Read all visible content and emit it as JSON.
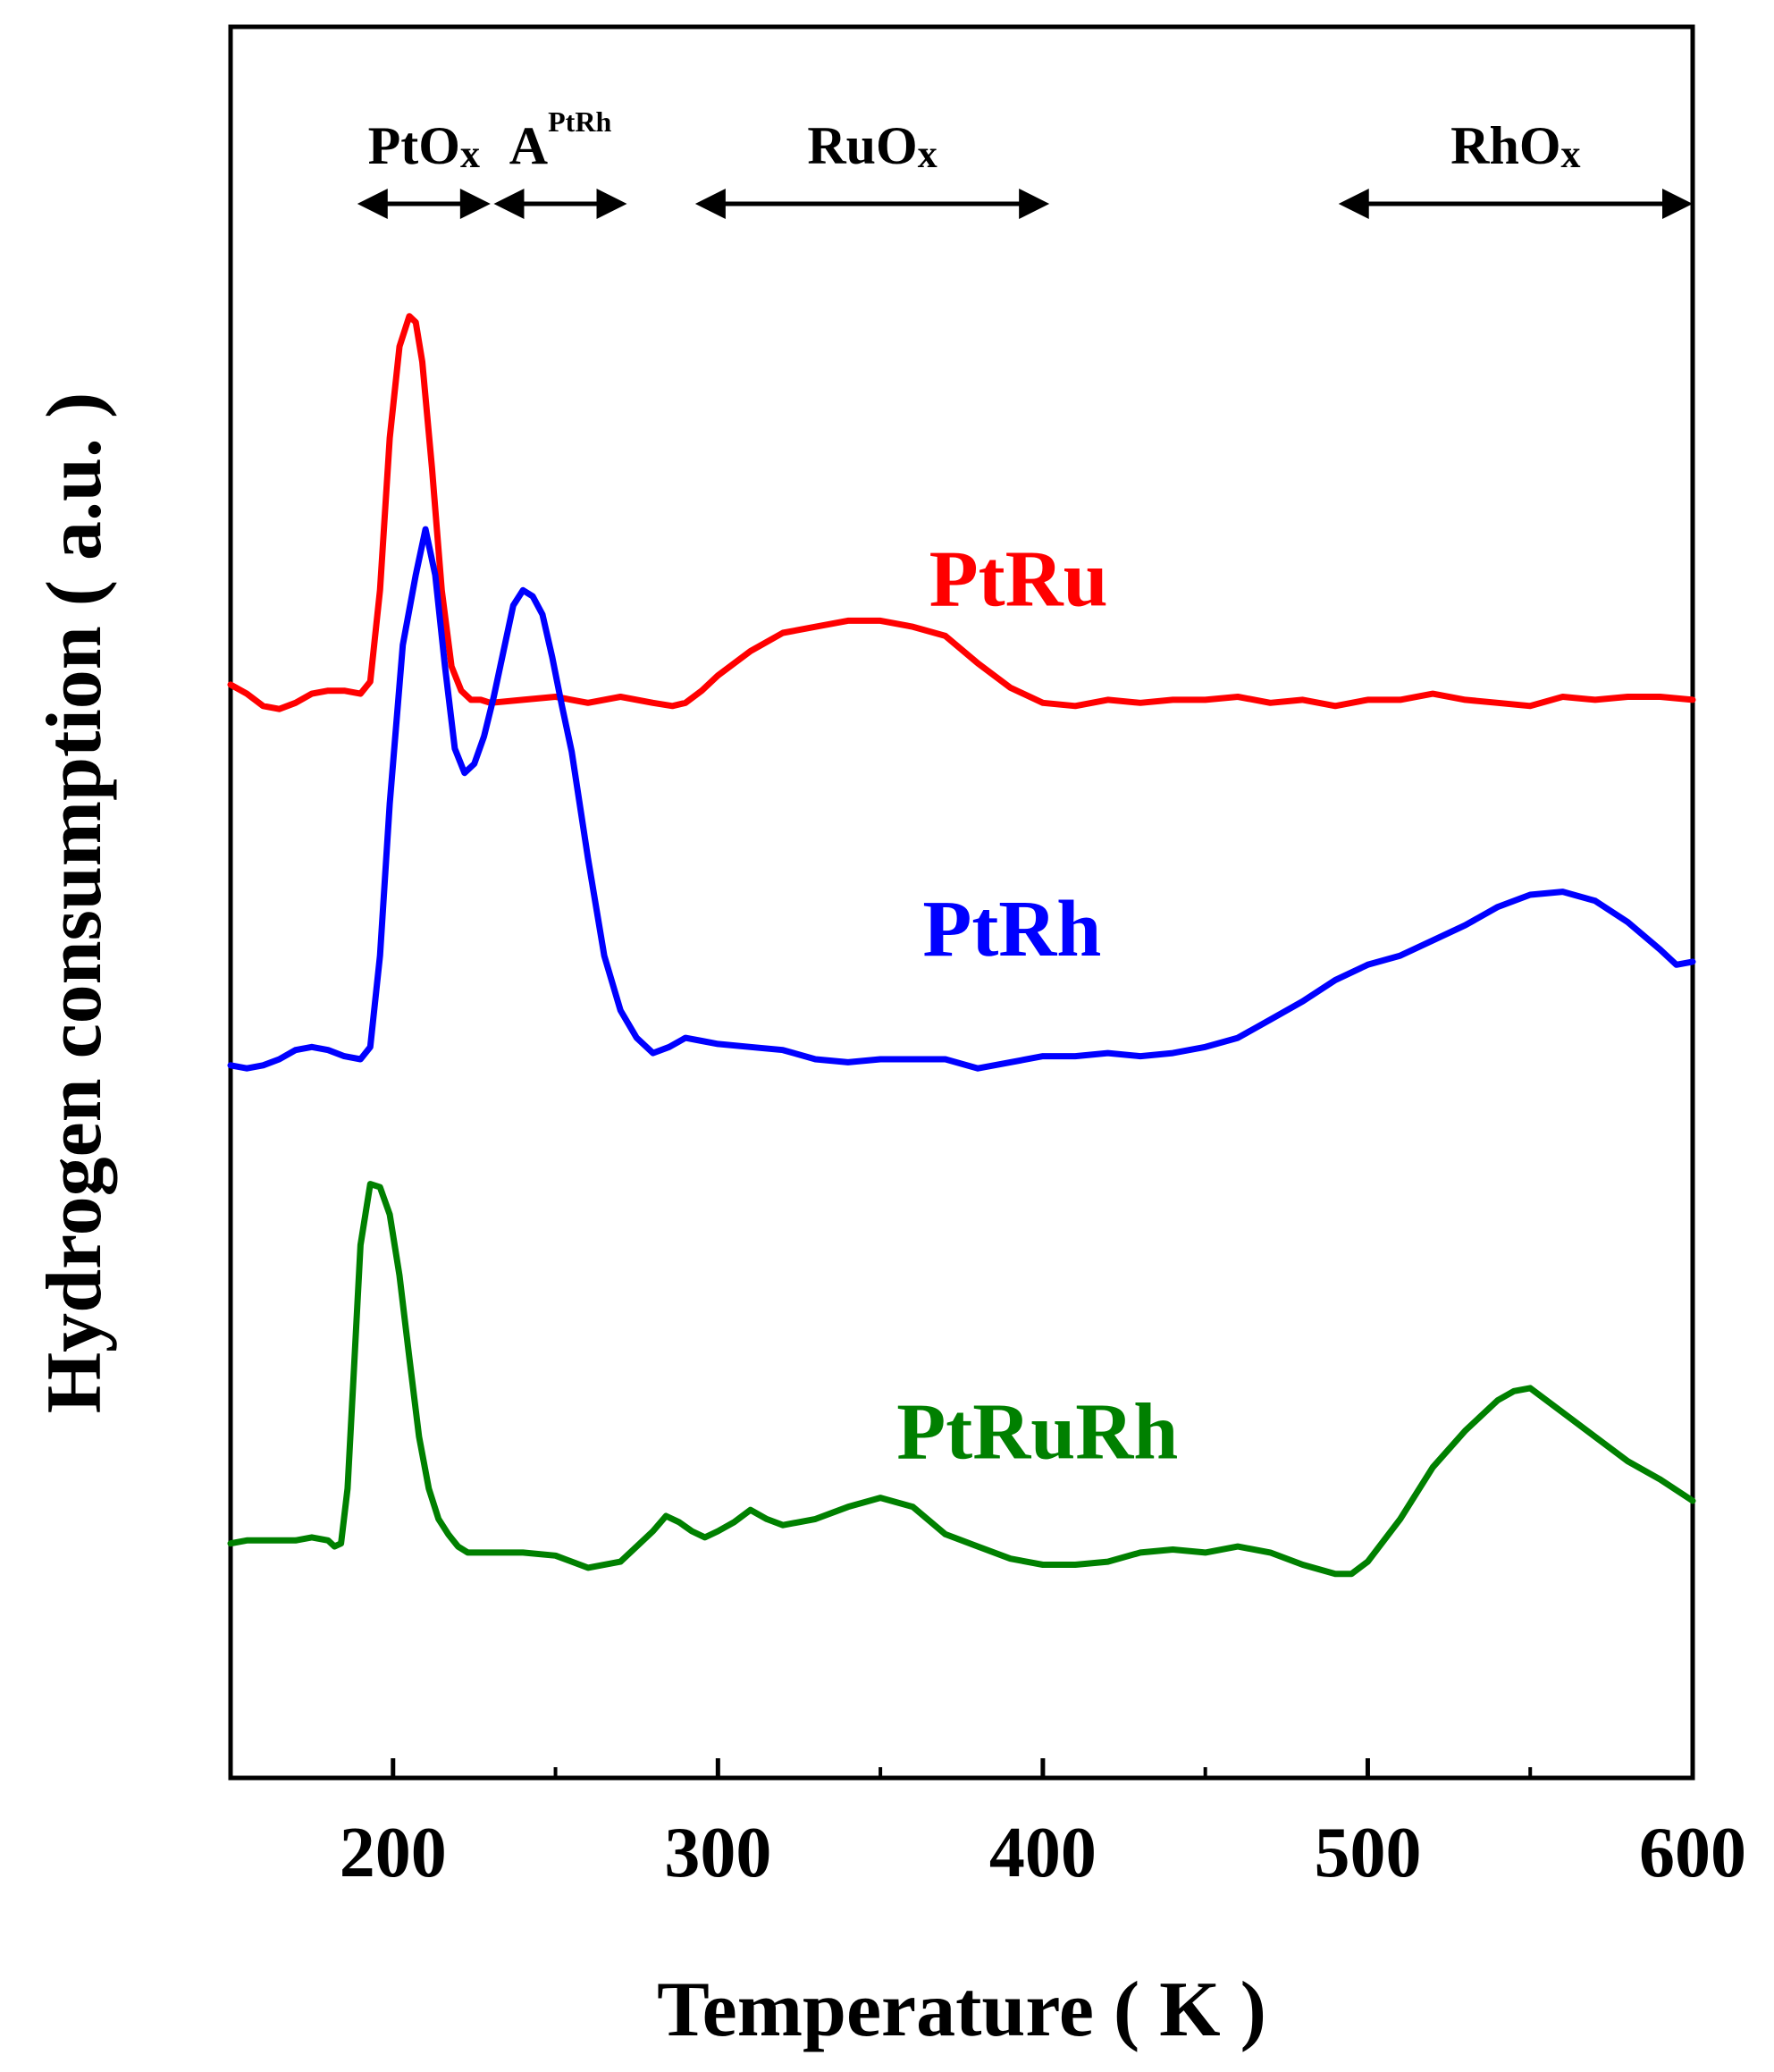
{
  "chart_data": {
    "type": "line",
    "title": "",
    "xlabel": "Temperature ( K )",
    "ylabel": "Hydrogen consumption ( a.u. )",
    "xlim": [
      150,
      600
    ],
    "ylim": [
      -0.4,
      5.35
    ],
    "x_ticks": [
      200,
      300,
      400,
      500,
      600
    ],
    "y_ticks": [],
    "grid": false,
    "legend": "inline labels",
    "regions": [
      {
        "name": "pt",
        "label": "PtO",
        "sub": "x",
        "sup": "",
        "x_range": [
          189,
          230
        ]
      },
      {
        "name": "a",
        "label": "A",
        "sub": "",
        "sup": "PtRh",
        "x_range": [
          231,
          272
        ]
      },
      {
        "name": "ru",
        "label": "RuO",
        "sub": "x",
        "sup": "",
        "x_range": [
          293,
          402
        ]
      },
      {
        "name": "rh",
        "label": "RhO",
        "sub": "x",
        "sup": "",
        "x_range": [
          491,
          600
        ]
      }
    ],
    "series": [
      {
        "name": "PtRu",
        "color": "#ff0000",
        "label_x": 365,
        "label_y": 3.45,
        "x": [
          150,
          155,
          160,
          165,
          170,
          175,
          180,
          185,
          190,
          193,
          196,
          199,
          202,
          205,
          207,
          209,
          212,
          215,
          218,
          221,
          224,
          227,
          230,
          240,
          250,
          260,
          270,
          280,
          286,
          290,
          295,
          300,
          310,
          320,
          330,
          340,
          350,
          360,
          370,
          380,
          390,
          400,
          410,
          420,
          430,
          440,
          450,
          460,
          470,
          480,
          490,
          500,
          510,
          520,
          530,
          540,
          550,
          560,
          570,
          580,
          590,
          600
        ],
        "values": [
          3.19,
          3.16,
          3.12,
          3.11,
          3.13,
          3.16,
          3.17,
          3.17,
          3.16,
          3.2,
          3.5,
          4.0,
          4.3,
          4.4,
          4.38,
          4.25,
          3.9,
          3.5,
          3.25,
          3.17,
          3.14,
          3.14,
          3.13,
          3.14,
          3.15,
          3.13,
          3.15,
          3.13,
          3.12,
          3.13,
          3.17,
          3.22,
          3.3,
          3.36,
          3.38,
          3.4,
          3.4,
          3.38,
          3.35,
          3.26,
          3.18,
          3.13,
          3.12,
          3.14,
          3.13,
          3.14,
          3.14,
          3.15,
          3.13,
          3.14,
          3.12,
          3.14,
          3.14,
          3.16,
          3.14,
          3.13,
          3.12,
          3.15,
          3.14,
          3.15,
          3.15,
          3.14
        ]
      },
      {
        "name": "PtRh",
        "color": "#0000ff",
        "label_x": 363,
        "label_y": 2.3,
        "x": [
          150,
          155,
          160,
          165,
          170,
          175,
          180,
          185,
          190,
          193,
          196,
          199,
          203,
          207,
          210,
          213,
          216,
          219,
          222,
          225,
          228,
          231,
          234,
          237,
          240,
          243,
          246,
          249,
          252,
          255,
          260,
          265,
          270,
          275,
          280,
          285,
          290,
          295,
          300,
          310,
          320,
          330,
          340,
          350,
          360,
          370,
          380,
          390,
          400,
          410,
          420,
          430,
          440,
          450,
          460,
          470,
          480,
          490,
          500,
          510,
          520,
          530,
          540,
          550,
          560,
          570,
          580,
          590,
          595,
          600
        ],
        "values": [
          1.94,
          1.93,
          1.94,
          1.96,
          1.99,
          2.0,
          1.99,
          1.97,
          1.96,
          2.0,
          2.3,
          2.8,
          3.32,
          3.55,
          3.7,
          3.55,
          3.25,
          2.98,
          2.9,
          2.93,
          3.02,
          3.15,
          3.3,
          3.45,
          3.5,
          3.48,
          3.42,
          3.28,
          3.12,
          2.97,
          2.62,
          2.3,
          2.12,
          2.03,
          1.98,
          2.0,
          2.03,
          2.02,
          2.01,
          2.0,
          1.99,
          1.96,
          1.95,
          1.96,
          1.96,
          1.96,
          1.93,
          1.95,
          1.97,
          1.97,
          1.98,
          1.97,
          1.98,
          2.0,
          2.03,
          2.09,
          2.15,
          2.22,
          2.27,
          2.3,
          2.35,
          2.4,
          2.46,
          2.5,
          2.51,
          2.48,
          2.41,
          2.32,
          2.27,
          2.28
        ]
      },
      {
        "name": "PtRuRh",
        "color": "#008000",
        "label_x": 355,
        "label_y": 0.65,
        "x": [
          150,
          155,
          160,
          165,
          170,
          175,
          180,
          182,
          184,
          186,
          188,
          190,
          193,
          196,
          199,
          202,
          205,
          208,
          211,
          214,
          217,
          220,
          223,
          226,
          230,
          240,
          250,
          260,
          270,
          280,
          284,
          288,
          292,
          296,
          300,
          305,
          310,
          315,
          320,
          330,
          340,
          350,
          360,
          370,
          380,
          390,
          400,
          410,
          420,
          430,
          440,
          450,
          460,
          470,
          480,
          490,
          495,
          500,
          510,
          520,
          530,
          540,
          545,
          550,
          560,
          570,
          580,
          590,
          600
        ],
        "values": [
          0.37,
          0.38,
          0.38,
          0.38,
          0.38,
          0.39,
          0.38,
          0.36,
          0.37,
          0.55,
          0.95,
          1.35,
          1.55,
          1.54,
          1.45,
          1.25,
          0.98,
          0.72,
          0.55,
          0.45,
          0.4,
          0.36,
          0.34,
          0.34,
          0.34,
          0.34,
          0.33,
          0.29,
          0.31,
          0.41,
          0.46,
          0.44,
          0.41,
          0.39,
          0.41,
          0.44,
          0.48,
          0.45,
          0.43,
          0.45,
          0.49,
          0.52,
          0.49,
          0.4,
          0.36,
          0.32,
          0.3,
          0.3,
          0.31,
          0.34,
          0.35,
          0.34,
          0.36,
          0.34,
          0.3,
          0.27,
          0.27,
          0.31,
          0.45,
          0.62,
          0.74,
          0.84,
          0.87,
          0.88,
          0.8,
          0.72,
          0.64,
          0.58,
          0.51
        ]
      }
    ]
  }
}
